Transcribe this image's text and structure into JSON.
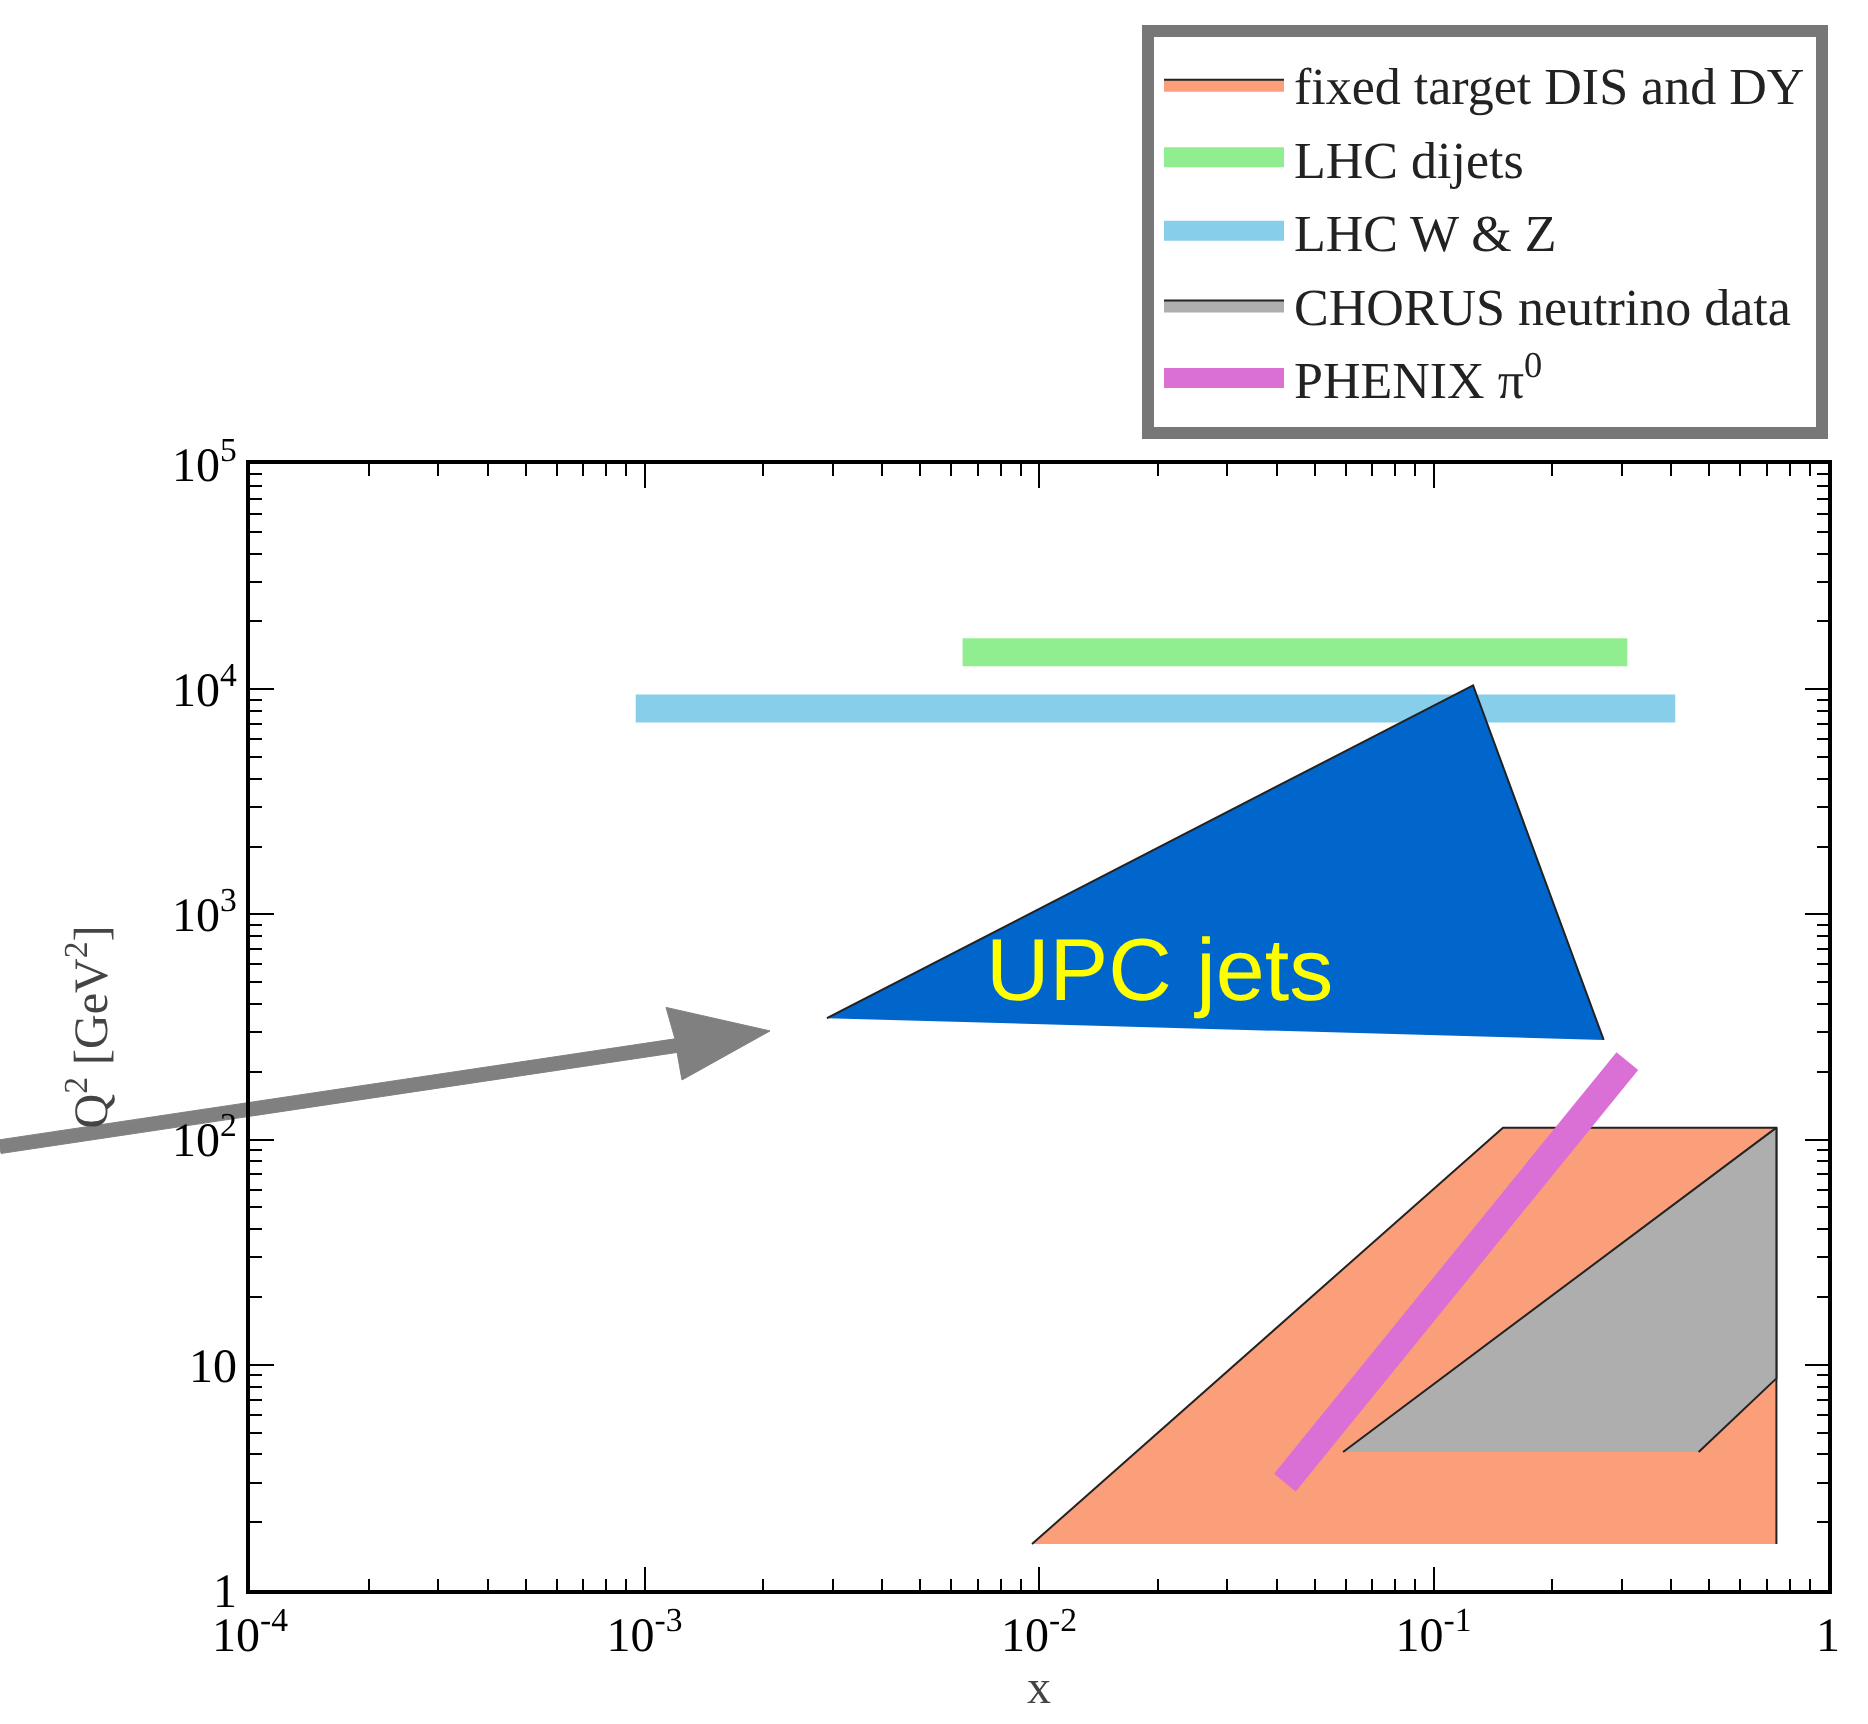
{
  "chart_data": {
    "type": "area",
    "xlabel": "x",
    "ylabel": "Q$^{2}$ [GeV$^{2}$]",
    "log": "xy",
    "grid": false,
    "legend": "top right",
    "xlim": [
      0.0001,
      1
    ],
    "ylim": [
      1,
      100000
    ],
    "xticks": [
      {
        "value": 0.0001,
        "label": "10$^{-4}$"
      },
      {
        "value": 0.001,
        "label": "10$^{-3}$"
      },
      {
        "value": 0.01,
        "label": "10$^{-2}$"
      },
      {
        "value": 0.1,
        "label": "10$^{-1}$"
      },
      1
    ],
    "yticks": [
      1,
      10,
      {
        "value": 100,
        "label": "10$^{2}$"
      },
      {
        "value": 1000,
        "label": "10$^{3}$"
      },
      {
        "value": 10000,
        "label": "10$^{4}$"
      },
      {
        "value": 100000,
        "label": "10$^{5}$"
      }
    ],
    "series": [
      {
        "name": "fixed target DIS and DY",
        "color": "#fb9e7a",
        "x": [
          0.0096,
          0.15,
          0.74,
          0.74
        ],
        "values": [
          1.6,
          113,
          113,
          1.6
        ]
      },
      {
        "type": "line",
        "name": "LHC dijets",
        "color": "#90ee90",
        "x": [
          0.0064,
          0.31
        ],
        "values": [
          14600,
          14600
        ]
      },
      {
        "type": "line",
        "name": "LHC W & Z",
        "color": "#87ceeb",
        "x": [
          0.00095,
          0.41
        ],
        "values": [
          8200,
          8200
        ]
      },
      {
        "name": "CHORUS neutrino data",
        "color": "#aeaeae",
        "x": [
          0.059,
          0.74,
          0.74,
          0.47
        ],
        "values": [
          4.1,
          113,
          8.7,
          4.1
        ]
      },
      {
        "type": "line",
        "name": "PHENIX π$^{0}$",
        "color": "#da70d6",
        "x": [
          0.042,
          0.31
        ],
        "values": [
          3.0,
          223
        ]
      },
      {
        "color": "#0066cc",
        "x": [
          0.0029,
          0.126,
          0.27
        ],
        "values": [
          346,
          10400,
          277
        ]
      }
    ],
    "annotations": [
      "UPC jets"
    ]
  }
}
